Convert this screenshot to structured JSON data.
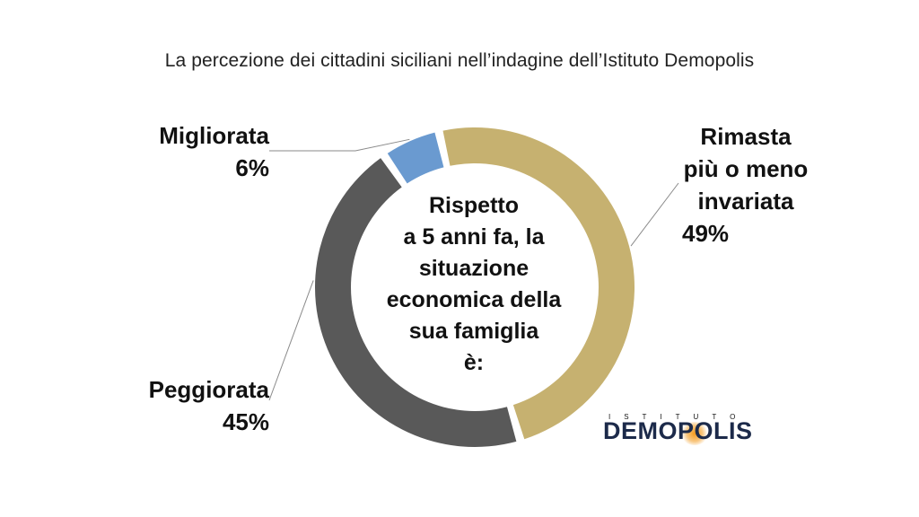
{
  "title": "La percezione dei cittadini siciliani nell’indagine dell’Istituto Demopolis",
  "chart_data": {
    "type": "pie",
    "title": "La percezione dei cittadini siciliani nell’indagine dell’Istituto Demopolis",
    "center_text": [
      "Rispetto",
      "a 5 anni fa, la",
      "situazione",
      "economica della",
      "sua famiglia",
      "è:"
    ],
    "slices": [
      {
        "name": "Rimasta più o meno invariata",
        "label_lines": [
          "Rimasta",
          "più o meno",
          "invariata"
        ],
        "value": 49,
        "value_label": "49%",
        "color": "#C6B170"
      },
      {
        "name": "Peggiorata",
        "label_lines": [
          "Peggiorata"
        ],
        "value": 45,
        "value_label": "45%",
        "color": "#595959"
      },
      {
        "name": "Migliorata",
        "label_lines": [
          "Migliorata"
        ],
        "value": 6,
        "value_label": "6%",
        "color": "#6A9AD0"
      }
    ]
  },
  "logo": {
    "top_text": "ISTITUTO",
    "main_text": "DEMOPOLIS"
  }
}
